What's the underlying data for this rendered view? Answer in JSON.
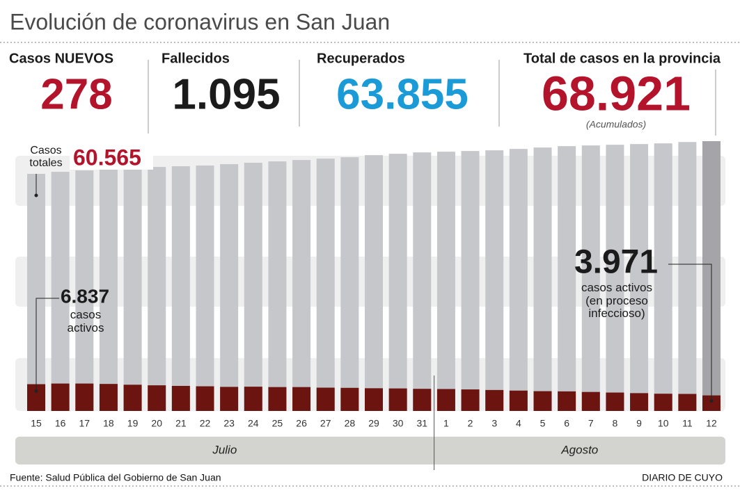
{
  "header": {
    "title": "Evolución de coronavirus en San Juan",
    "stats": [
      {
        "label": "Casos NUEVOS",
        "value": "278",
        "color": "#b3142c"
      },
      {
        "label": "Fallecidos",
        "value": "1.095",
        "color": "#1b1b1b"
      },
      {
        "label": "Recuperados",
        "value": "63.855",
        "color": "#1a9ad7"
      },
      {
        "label": "Total de casos en la provincia",
        "value": "68.921",
        "color": "#b3142c",
        "note": "(Acumulados)"
      }
    ]
  },
  "chart_data": {
    "type": "bar",
    "categories": [
      "15",
      "16",
      "17",
      "18",
      "19",
      "20",
      "21",
      "22",
      "23",
      "24",
      "25",
      "26",
      "27",
      "28",
      "29",
      "30",
      "31",
      "1",
      "2",
      "3",
      "4",
      "5",
      "6",
      "7",
      "8",
      "9",
      "10",
      "11",
      "12"
    ],
    "months": [
      "Julio",
      "Agosto"
    ],
    "series": [
      {
        "name": "Casos totales",
        "color": "#c6c7cb",
        "highlight_color": "#a4a4a9",
        "values": [
          60565,
          61095,
          61449,
          61803,
          62157,
          62334,
          62511,
          62688,
          63042,
          63396,
          63751,
          64105,
          64459,
          64813,
          65345,
          65699,
          66053,
          66230,
          66407,
          66584,
          66938,
          67292,
          67646,
          67823,
          68001,
          68178,
          68355,
          68709,
          68921
        ],
        "value_labels": [
          "60.565",
          null,
          null,
          null,
          null,
          null,
          null,
          null,
          null,
          null,
          null,
          null,
          null,
          null,
          null,
          null,
          null,
          null,
          null,
          null,
          null,
          null,
          null,
          null,
          null,
          null,
          null,
          null,
          null
        ]
      },
      {
        "name": "casos activos",
        "color": "#6c1410",
        "values": [
          6837,
          7000,
          7000,
          6900,
          6700,
          6550,
          6400,
          6300,
          6150,
          6200,
          6100,
          6100,
          5950,
          5900,
          5800,
          5750,
          5650,
          5600,
          5500,
          5350,
          5200,
          5050,
          5000,
          4850,
          4700,
          4550,
          4400,
          4350,
          3971
        ],
        "value_labels": [
          "6.837",
          null,
          null,
          null,
          null,
          null,
          null,
          null,
          null,
          null,
          null,
          null,
          null,
          null,
          null,
          null,
          null,
          null,
          null,
          null,
          null,
          null,
          null,
          null,
          null,
          null,
          null,
          null,
          "3.971"
        ]
      }
    ],
    "annotation": "casos activos (en proceso infeccioso)"
  },
  "footer": {
    "source": "Fuente: Salud Pública del Gobierno de San Juan",
    "credit": "DIARIO DE CUYO"
  }
}
